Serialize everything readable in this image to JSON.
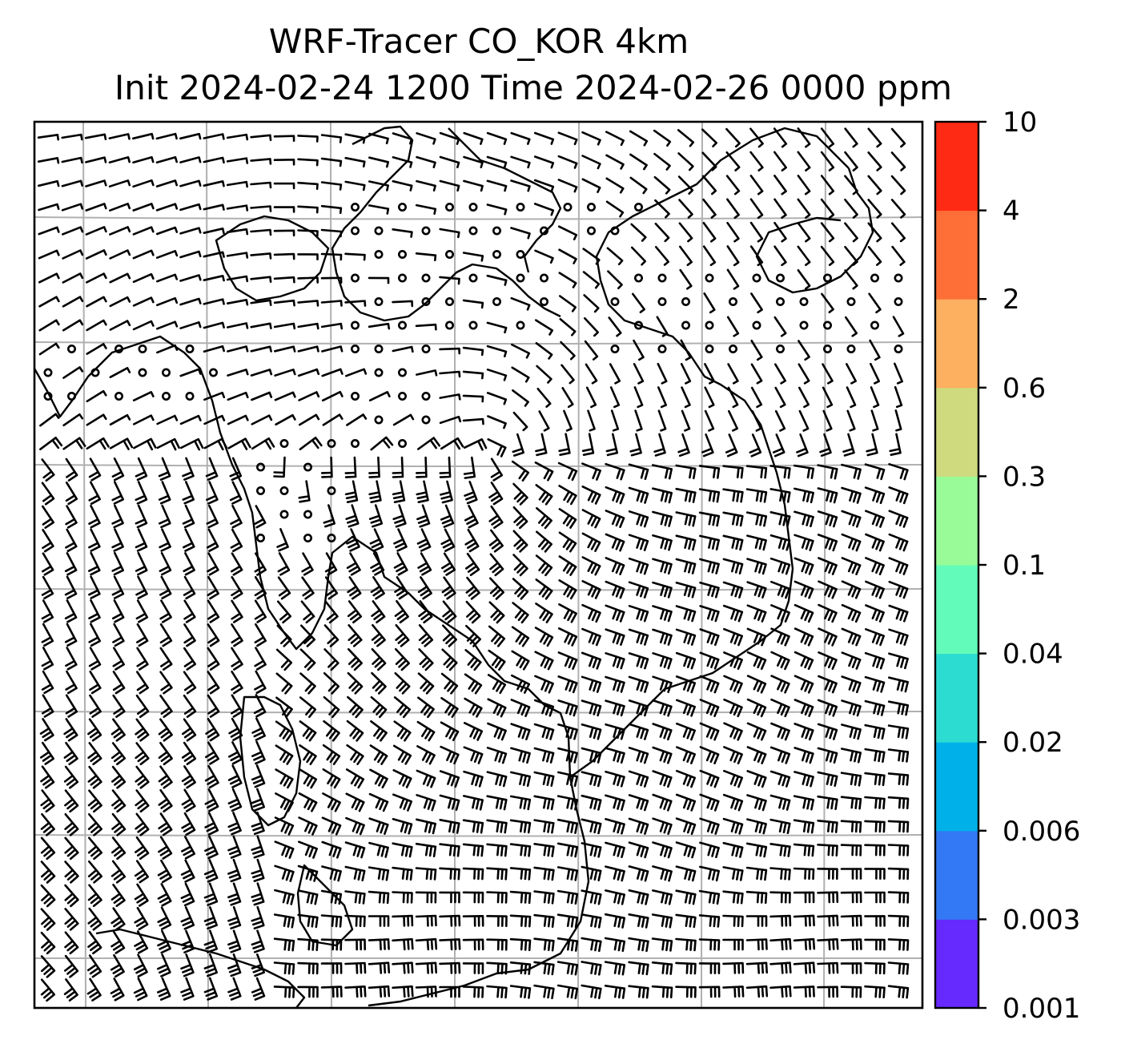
{
  "title": {
    "line1": "WRF-Tracer CO_KOR 4km",
    "line2": "Init 2024-02-24 1200 Time 2024-02-26 0000 ppm"
  },
  "map": {
    "features": [
      "coastlines",
      "lat-lon-gridlines",
      "wind-barbs",
      "calm-wind-circles"
    ],
    "gridline_color": "#b0b0b0"
  },
  "colorbar": {
    "tick_labels": [
      "0.001",
      "0.003",
      "0.006",
      "0.02",
      "0.04",
      "0.1",
      "0.3",
      "0.6",
      "2",
      "4",
      "10"
    ],
    "colors": [
      "#6629fe",
      "#3378f5",
      "#00b1e9",
      "#2ddcd1",
      "#62fbb9",
      "#98fb97",
      "#ceda7d",
      "#fcb060",
      "#fe6f38",
      "#ff2a14"
    ]
  }
}
